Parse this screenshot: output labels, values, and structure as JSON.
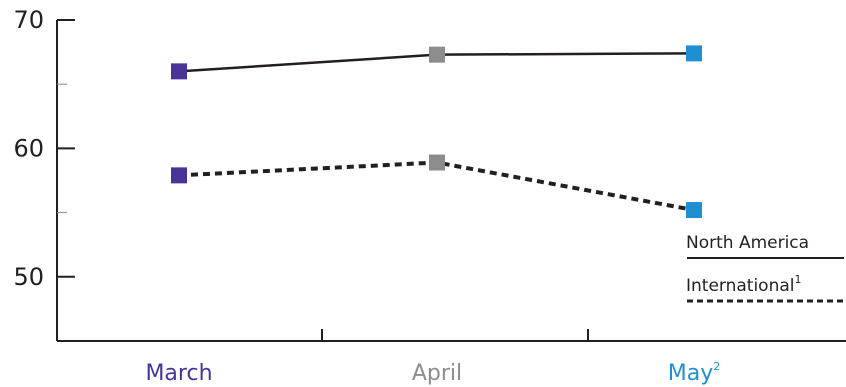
{
  "chart_data": {
    "type": "line",
    "categories": [
      "March",
      "April",
      "May"
    ],
    "category_footnotes": [
      "",
      "",
      "2"
    ],
    "category_colors": [
      "#4a3396",
      "#8c8c8c",
      "#1f8fd4"
    ],
    "series": [
      {
        "name": "North America",
        "footnote": "",
        "style": "solid",
        "values": [
          66.0,
          67.3,
          67.4
        ]
      },
      {
        "name": "International",
        "footnote": "1",
        "style": "dashed",
        "values": [
          57.9,
          58.9,
          55.2
        ]
      }
    ],
    "ylim": [
      45,
      70
    ],
    "yticks": [
      50,
      60,
      70
    ],
    "ytick_labels": [
      "50",
      "60",
      "70"
    ],
    "y_minor_ticks": [
      55,
      65
    ],
    "legend_position": "bottom-right",
    "grid": false,
    "line_color": "#231f20"
  }
}
